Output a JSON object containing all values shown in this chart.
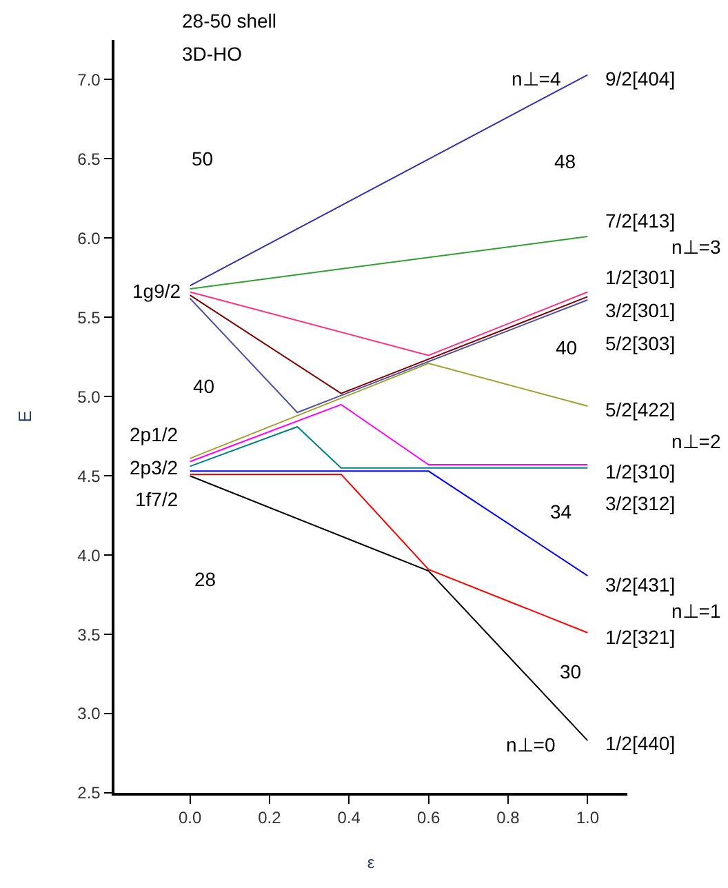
{
  "chart_data": {
    "type": "line",
    "title": "28-50 shell",
    "subtitle": "3D-HO",
    "xlabel": "ε",
    "ylabel": "E",
    "xlim": [
      -0.19,
      1.1
    ],
    "xticks": [
      {
        "value": 0,
        "label": "0.0"
      },
      0.2,
      0.4,
      0.6,
      0.8,
      {
        "value": 1,
        "label": "1.0"
      }
    ],
    "ylim": [
      2.5,
      7.25
    ],
    "yticks": [
      2.5,
      {
        "value": 3,
        "label": "3.0"
      },
      3.5,
      {
        "value": 4,
        "label": "4.0"
      },
      4.5,
      {
        "value": 5,
        "label": "5.0"
      },
      5.5,
      {
        "value": 6,
        "label": "6.0"
      },
      6.5,
      {
        "value": 7,
        "label": "7.0"
      }
    ],
    "marker": "none",
    "line_style": "solid",
    "series": [
      {
        "color": "#3030b0",
        "x": [
          0,
          1
        ],
        "values": [
          5.7,
          7.03
        ]
      },
      {
        "color": "#30a030",
        "x": [
          0,
          1
        ],
        "values": [
          5.68,
          6.01
        ]
      },
      {
        "color": "#ff3080",
        "x": [
          0,
          0.6,
          1
        ],
        "values": [
          5.66,
          5.26,
          5.66
        ]
      },
      {
        "color": "#800000",
        "x": [
          0,
          0.38,
          1
        ],
        "values": [
          5.64,
          5.02,
          5.63
        ]
      },
      {
        "color": "#5050a0",
        "x": [
          0,
          0.27,
          1
        ],
        "values": [
          5.62,
          4.9,
          5.61
        ]
      },
      {
        "color": "#a0a030",
        "x": [
          0,
          0.6,
          1
        ],
        "values": [
          4.61,
          5.21,
          4.94
        ]
      },
      {
        "color": "#ff00ff",
        "x": [
          0,
          0.38,
          0.6,
          1
        ],
        "values": [
          4.59,
          4.95,
          4.57,
          4.57
        ]
      },
      {
        "color": "#008080",
        "x": [
          0,
          0.27,
          0.38,
          1
        ],
        "values": [
          4.56,
          4.81,
          4.55,
          4.55
        ]
      },
      {
        "color": "#0000ff",
        "x": [
          0,
          0.6,
          1
        ],
        "values": [
          4.53,
          4.53,
          3.87
        ]
      },
      {
        "color": "#ff0000",
        "x": [
          0,
          0.38,
          0.6,
          1
        ],
        "values": [
          4.51,
          4.51,
          3.91,
          3.51
        ]
      },
      {
        "color": "#000000",
        "x": [
          0,
          0.6,
          1
        ],
        "values": [
          4.5,
          3.9,
          2.83
        ]
      }
    ],
    "annotations": [
      "50",
      "40",
      "28",
      "48",
      "40",
      "34",
      "30",
      "1g9/2",
      "2p1/2",
      "2p3/2",
      "1f7/2",
      "n⊥=4",
      "n⊥=0",
      "9/2[404]",
      "7/2[413]",
      "1/2[301]",
      "3/2[301]",
      "5/2[303]",
      "5/2[422]",
      "1/2[310]",
      "3/2[312]",
      "3/2[431]",
      "1/2[321]",
      "1/2[440]",
      "n⊥=3",
      "n⊥=2",
      "n⊥=1"
    ]
  }
}
